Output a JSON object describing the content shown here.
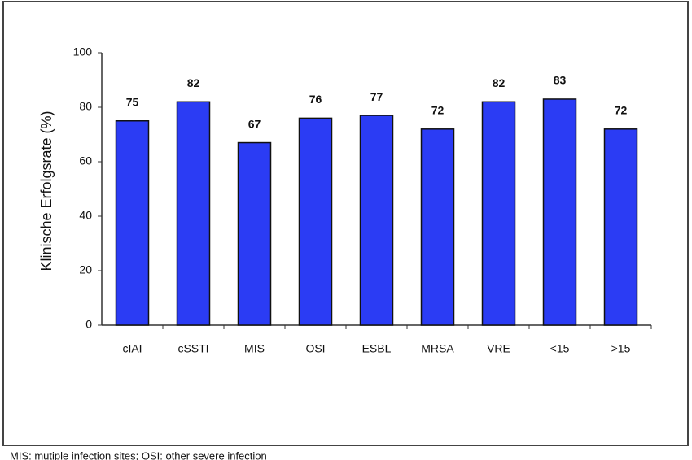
{
  "chart_data": {
    "type": "bar",
    "ylabel": "Klinische Erfolgsrate (%)",
    "categories": [
      "cIAI",
      "cSSTI",
      "MIS",
      "OSI",
      "ESBL",
      "MRSA",
      "VRE",
      "<15",
      ">15"
    ],
    "values": [
      75,
      82,
      67,
      76,
      77,
      72,
      82,
      83,
      72
    ],
    "color": "#2b3cf4",
    "ylim": [
      0,
      100
    ],
    "yticks": [
      0,
      20,
      40,
      60,
      80,
      100
    ],
    "footnote": "MIS: mutiple infection sites; OSI: other severe infection"
  }
}
